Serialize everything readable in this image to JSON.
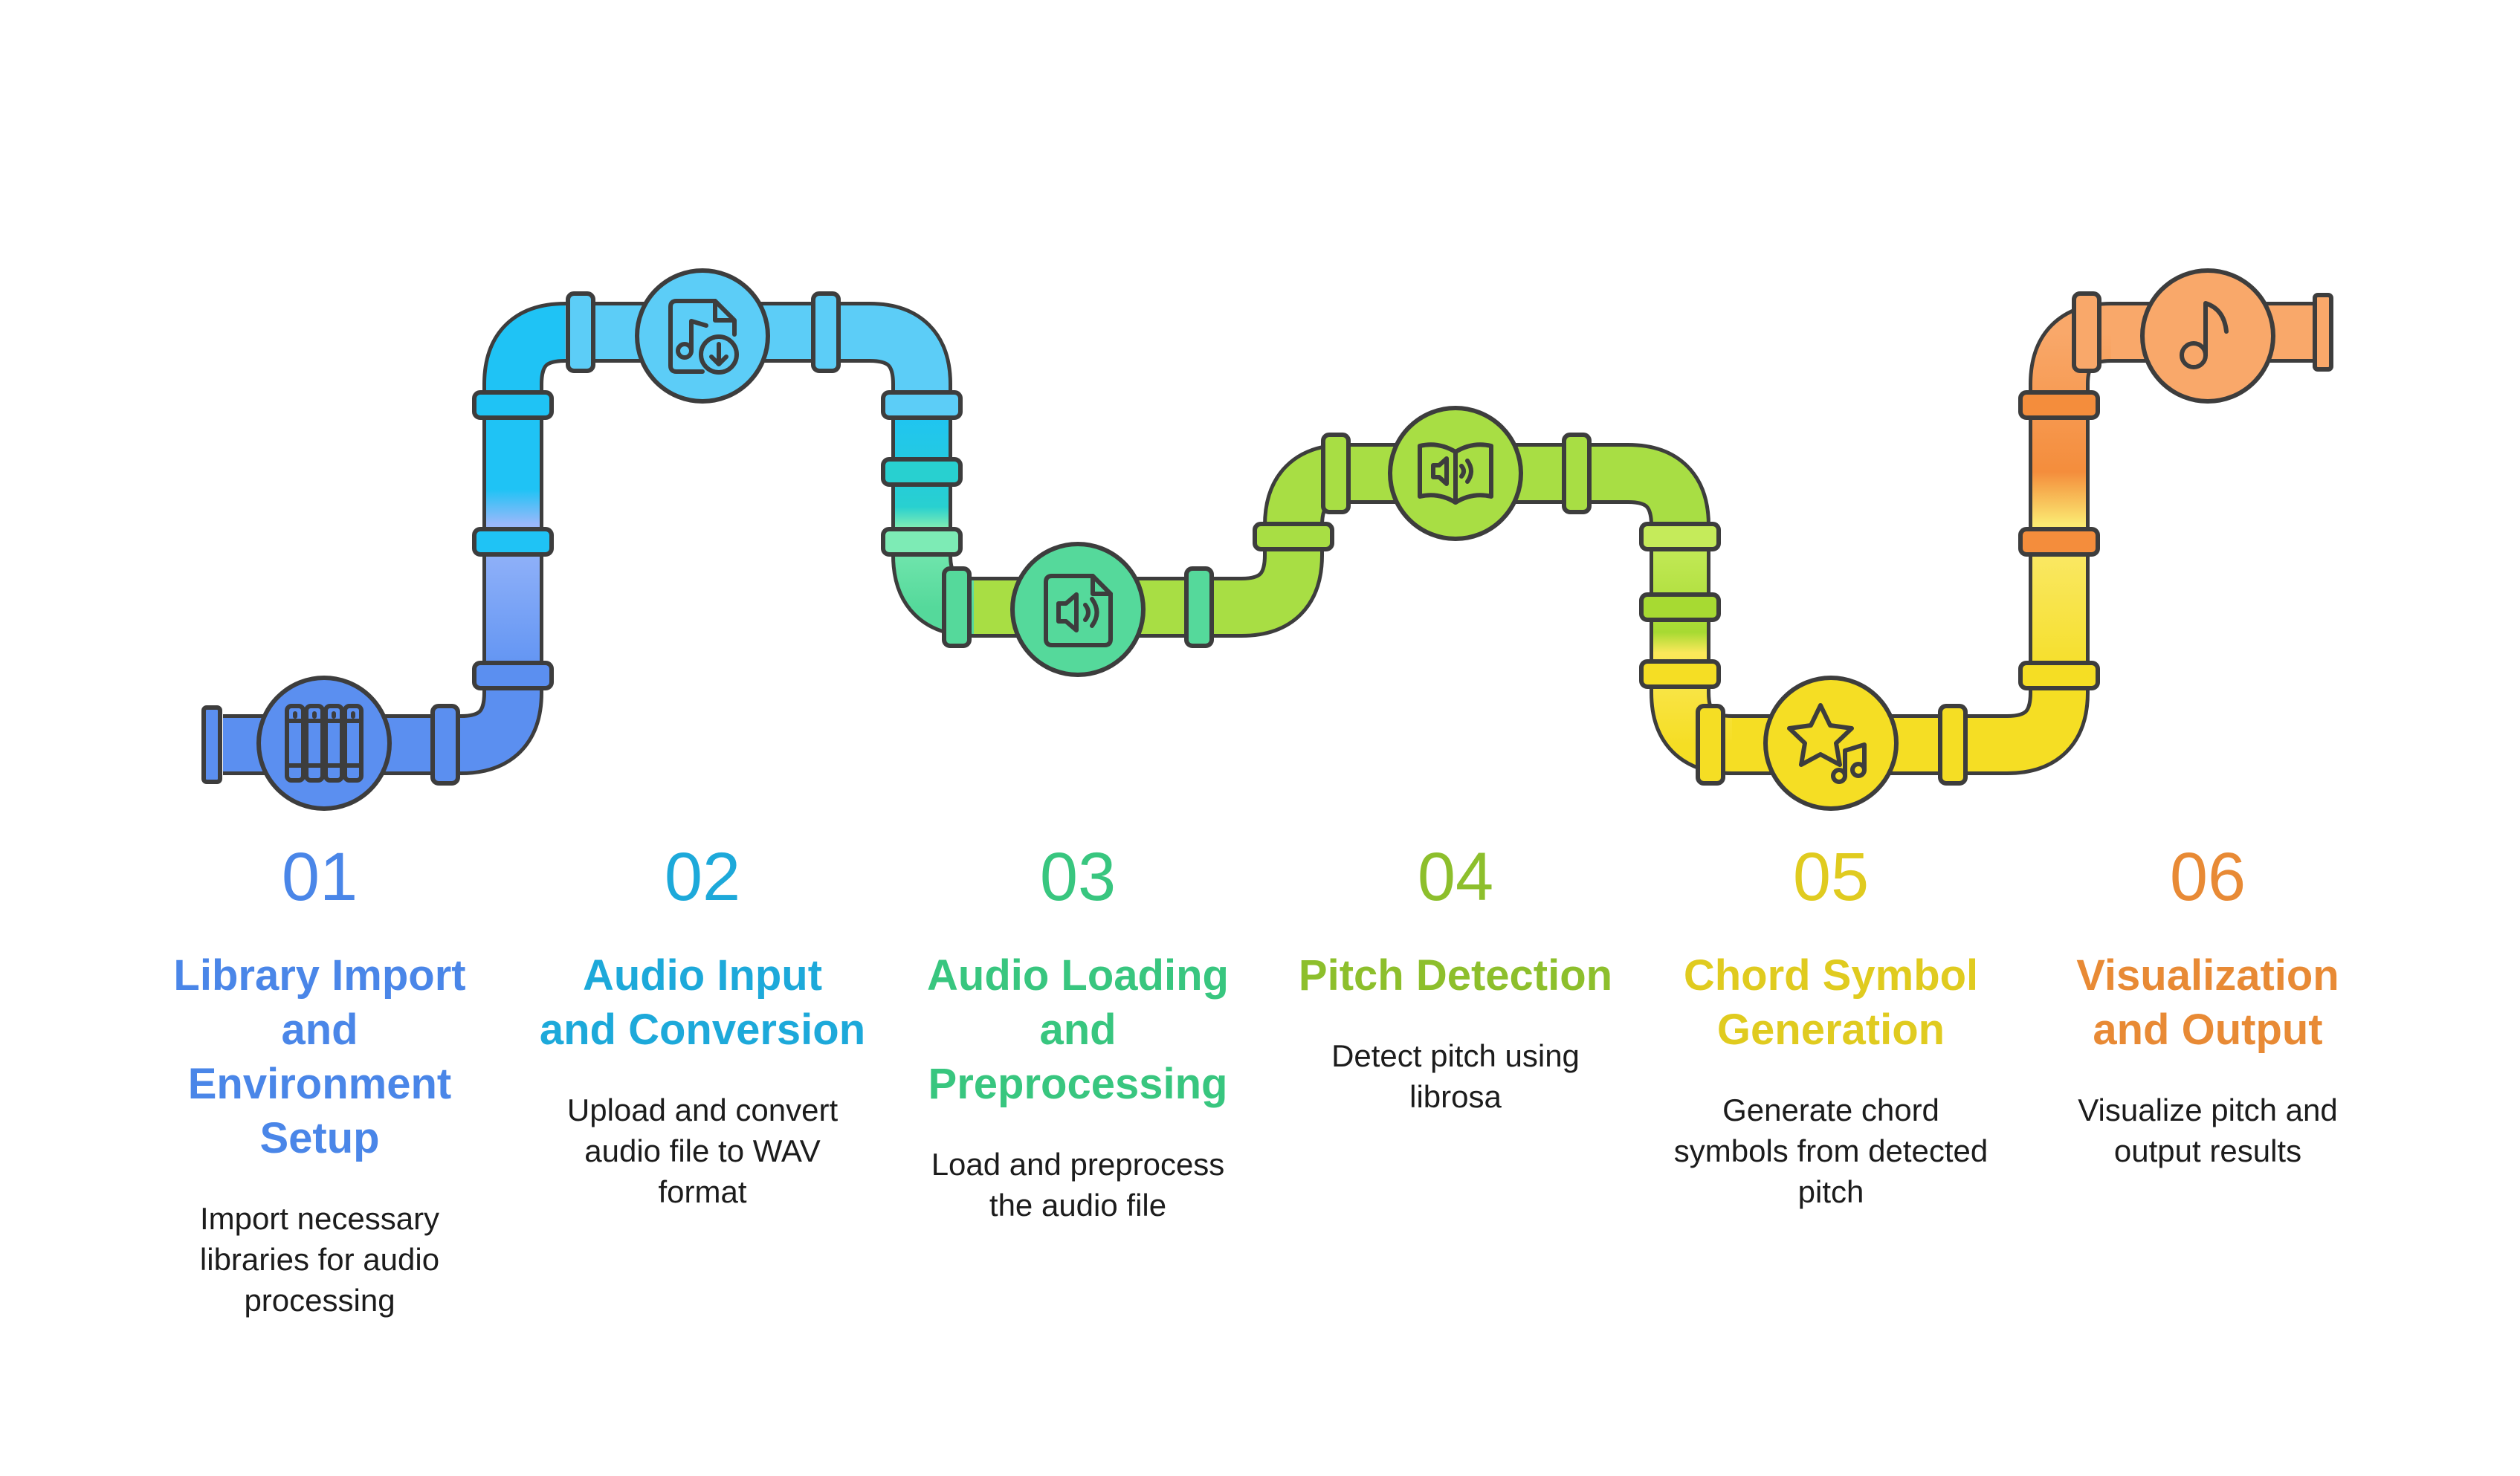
{
  "steps": [
    {
      "number": "01",
      "title": "Library Import and Environment Setup",
      "description": "Import necessary libraries for audio processing",
      "color": "#4A86E8",
      "icon": "library-books-icon"
    },
    {
      "number": "02",
      "title": "Audio Input and Conversion",
      "description": "Upload and convert audio file to WAV format",
      "color": "#1DA9DA",
      "icon": "music-file-download-icon"
    },
    {
      "number": "03",
      "title": "Audio Loading and Preprocessing",
      "description": "Load and preprocess the audio file",
      "color": "#38C67F",
      "icon": "audio-file-icon"
    },
    {
      "number": "04",
      "title": "Pitch Detection",
      "description": "Detect pitch using librosa",
      "color": "#8DBF2C",
      "icon": "audio-book-icon"
    },
    {
      "number": "05",
      "title": "Chord Symbol Generation",
      "description": "Generate chord symbols from detected pitch",
      "color": "#E0CB1F",
      "icon": "star-music-icon"
    },
    {
      "number": "06",
      "title": "Visualization and Output",
      "description": "Visualize pitch and output results",
      "color": "#E88A35",
      "icon": "music-note-icon"
    }
  ]
}
